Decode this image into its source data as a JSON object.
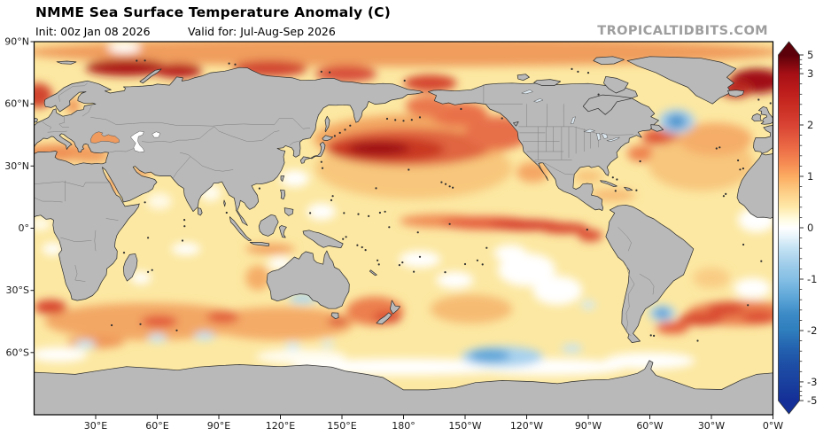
{
  "header": {
    "title": "NMME Sea Surface Temperature Anomaly (C)",
    "init": "Init: 00z Jan 08 2026",
    "valid": "Valid for: Jul-Aug-Sep 2026",
    "watermark": "TROPICALTIDBITS.COM"
  },
  "axes": {
    "lat_ticks": [
      {
        "label": "90°N",
        "lat": 90
      },
      {
        "label": "60°N",
        "lat": 60
      },
      {
        "label": "30°N",
        "lat": 30
      },
      {
        "label": "0°",
        "lat": 0
      },
      {
        "label": "30°S",
        "lat": -30
      },
      {
        "label": "60°S",
        "lat": -60
      }
    ],
    "lon_ticks": [
      {
        "label": "30°E",
        "lon": 30
      },
      {
        "label": "60°E",
        "lon": 60
      },
      {
        "label": "90°E",
        "lon": 90
      },
      {
        "label": "120°E",
        "lon": 120
      },
      {
        "label": "150°E",
        "lon": 150
      },
      {
        "label": "180°",
        "lon": 180
      },
      {
        "label": "150°W",
        "lon": 210
      },
      {
        "label": "120°W",
        "lon": 240
      },
      {
        "label": "90°W",
        "lon": 270
      },
      {
        "label": "60°W",
        "lon": 300
      },
      {
        "label": "30°W",
        "lon": 330
      },
      {
        "label": "0°W",
        "lon": 360
      }
    ]
  },
  "colorbar": {
    "unit": "C",
    "major_ticks": [
      {
        "label": "5",
        "value": 5
      },
      {
        "label": "3",
        "value": 3
      },
      {
        "label": "2",
        "value": 2
      },
      {
        "label": "1",
        "value": 1
      },
      {
        "label": "0",
        "value": 0
      },
      {
        "label": "-1",
        "value": -1
      },
      {
        "label": "-2",
        "value": -2
      },
      {
        "label": "-3",
        "value": -3
      },
      {
        "label": "-5",
        "value": -5
      }
    ],
    "gradient": [
      [
        0.0,
        "#5c0009"
      ],
      [
        0.054,
        "#a50f15"
      ],
      [
        0.1,
        "#bb1b1b"
      ],
      [
        0.145,
        "#c92c22"
      ],
      [
        0.205,
        "#d94434"
      ],
      [
        0.27,
        "#ec6c46"
      ],
      [
        0.32,
        "#f79055"
      ],
      [
        0.354,
        "#fcae63"
      ],
      [
        0.4,
        "#fdd089"
      ],
      [
        0.44,
        "#fee8a8"
      ],
      [
        0.475,
        "#fffbe0"
      ],
      [
        0.5,
        "#ffffff"
      ],
      [
        0.525,
        "#e8f4fb"
      ],
      [
        0.56,
        "#c3e2f4"
      ],
      [
        0.61,
        "#9ccbe9"
      ],
      [
        0.649,
        "#85bfe5"
      ],
      [
        0.7,
        "#5ea7d8"
      ],
      [
        0.75,
        "#3c8ac6"
      ],
      [
        0.797,
        "#2f7ebd"
      ],
      [
        0.85,
        "#2361af"
      ],
      [
        0.9,
        "#1d4da5"
      ],
      [
        0.944,
        "#1a419f"
      ],
      [
        1.0,
        "#142f97"
      ]
    ],
    "top_arrow_color": "#5c0009",
    "bottom_arrow_color": "#142f97"
  },
  "map_style": {
    "ocean": "#fce8a2",
    "land": "#b9b9b9",
    "coast": "#2b2b2b",
    "inner_border": "#787878",
    "frame": "#000000",
    "black_sea_fill": "#ef9a5e",
    "caspian_fill": "#ffffff",
    "lake_fill": "#dce8f0"
  },
  "anomaly_fields": [
    "name",
    "lon_east_deg",
    "lat_deg",
    "rx_deg",
    "ry_deg",
    "color"
  ],
  "anomalies": [
    [
      "np-broad",
      185,
      29,
      48,
      15,
      "#f8c77d"
    ],
    [
      "np-mid",
      186,
      43,
      50,
      12,
      "#f3a763"
    ],
    [
      "np-halo",
      182,
      39,
      40,
      9,
      "#e06541"
    ],
    [
      "kuroshio-halo",
      172,
      38,
      28,
      6,
      "#c93722"
    ],
    [
      "kuroshio-core",
      168,
      38.5,
      15,
      3.2,
      "#9d1013"
    ],
    [
      "npe-red",
      226,
      46,
      16,
      8,
      "#e77048"
    ],
    [
      "gulf-alaska",
      207,
      55,
      14,
      6,
      "#e9714a"
    ],
    [
      "bering",
      192,
      59,
      11,
      5,
      "#ea784e"
    ],
    [
      "chukchi",
      193,
      70,
      13,
      4,
      "#d5452f"
    ],
    [
      "arctic-band",
      180,
      85,
      185,
      7,
      "#f09d5d"
    ],
    [
      "barents-core",
      45,
      77.5,
      20,
      4,
      "#ac1517"
    ],
    [
      "kara-core",
      70,
      76,
      12,
      3.5,
      "#b81f1c"
    ],
    [
      "laptev",
      115,
      77,
      18,
      4,
      "#d24732"
    ],
    [
      "esiberian",
      152,
      74.5,
      15,
      4,
      "#d8503a"
    ],
    [
      "norwegian",
      2,
      64,
      7,
      6,
      "#d2452f"
    ],
    [
      "gin-dark",
      352,
      71,
      13,
      6,
      "#a01014"
    ],
    [
      "gin-dark2",
      342,
      67,
      8,
      4,
      "#bb2a20"
    ],
    [
      "natl-nfld",
      305,
      44,
      9,
      4,
      "#e05c3b"
    ],
    [
      "natl-coast",
      296,
      36,
      7,
      4,
      "#ee8350"
    ],
    [
      "natl-broad",
      325,
      31,
      26,
      13,
      "#f8c67d"
    ],
    [
      "natl-mid",
      332,
      43,
      18,
      8,
      "#f5ad69"
    ],
    [
      "med",
      14,
      36.5,
      21,
      4,
      "#ef9054"
    ],
    [
      "med-east",
      27,
      34.5,
      10,
      3,
      "#f2a061"
    ],
    [
      "red-sea",
      38,
      20,
      2.5,
      7,
      "#f2a061"
    ],
    [
      "persian-gulf",
      52,
      27,
      5,
      2.5,
      "#f2a061"
    ],
    [
      "caribbean",
      282,
      16,
      11,
      3,
      "#f7bb74"
    ],
    [
      "gulf-mexico",
      270,
      25,
      7,
      3,
      "#f8c37a"
    ],
    [
      "baja",
      243,
      27,
      8,
      5,
      "#f5a765"
    ],
    [
      "hudson",
      280,
      58,
      6,
      4,
      "#f4ab68"
    ],
    [
      "baltic",
      19,
      59,
      3,
      4,
      "#ef9356"
    ],
    [
      "eq-west",
      198,
      3.5,
      20,
      3.2,
      "#f08c54"
    ],
    [
      "eq-mid",
      220,
      2.5,
      22,
      3.2,
      "#e55f3e"
    ],
    [
      "eq-core",
      240,
      1.5,
      18,
      2.6,
      "#d63a2b"
    ],
    [
      "eq-east",
      258,
      0,
      12,
      2.6,
      "#d8422f"
    ],
    [
      "peru-tongue",
      271,
      -3.5,
      6,
      3,
      "#dd5138"
    ],
    [
      "satl-band",
      344,
      -41,
      26,
      6,
      "#ea7d4e"
    ],
    [
      "satl-core1",
      337,
      -39,
      9,
      2.8,
      "#d8452f"
    ],
    [
      "satl-core2",
      353,
      -43,
      8,
      2.8,
      "#dc4c33"
    ],
    [
      "arg-red",
      325,
      -44,
      11,
      3,
      "#d8472f"
    ],
    [
      "arg-red2",
      311,
      -48,
      8,
      3,
      "#e55f3e"
    ],
    [
      "sind-band",
      55,
      -45,
      50,
      9,
      "#f3a765"
    ],
    [
      "sind-band2",
      120,
      -46,
      36,
      8,
      "#f4ab67"
    ],
    [
      "sind-core1",
      8,
      -38,
      8,
      3.5,
      "#d8452f"
    ],
    [
      "sind-core2",
      61,
      -45,
      9,
      3,
      "#e2593a"
    ],
    [
      "sind-core3",
      92,
      -43,
      8,
      3,
      "#e25d3b"
    ],
    [
      "soc-orange",
      30,
      -55,
      14,
      3,
      "#ef9758"
    ],
    [
      "tasman",
      166,
      -40,
      14,
      7,
      "#ec7f4e"
    ],
    [
      "nz-core",
      172,
      -43,
      7,
      3,
      "#da4f34"
    ],
    [
      "tassie-core",
      148,
      -45,
      5,
      2.2,
      "#dc5438"
    ],
    [
      "indo-java",
      115,
      -10,
      12,
      2.5,
      "#f2a160"
    ],
    [
      "wa-coast",
      109,
      -24,
      6,
      6,
      "#f5ad68"
    ],
    [
      "spac-warm",
      213,
      -39,
      20,
      7,
      "#f6bb73"
    ],
    [
      "brazil-ne",
      330,
      -24,
      9,
      5,
      "#f9cc84"
    ],
    [
      "wpac-white1",
      127,
      24,
      7,
      4,
      "#ffffff"
    ],
    [
      "wpac-white2",
      140,
      8,
      7,
      4,
      "#ffffff"
    ],
    [
      "wpac-white3",
      120,
      -17,
      6,
      3,
      "#ffffff"
    ],
    [
      "ind-white1",
      74,
      -10,
      7,
      3,
      "#ffffff"
    ],
    [
      "ind-white2",
      52,
      -24,
      5,
      3,
      "#ffffff"
    ],
    [
      "bengal-white",
      86,
      17,
      5,
      4,
      "#fffdf2"
    ],
    [
      "arab-white",
      61,
      13,
      6,
      4,
      "#fffae8"
    ],
    [
      "seatl-white",
      9,
      -10,
      5,
      3,
      "#ffffff"
    ],
    [
      "guinea-white",
      3,
      2,
      5,
      3,
      "#fffdf0"
    ],
    [
      "sepac-white1",
      240,
      -20,
      14,
      8,
      "#ffffff"
    ],
    [
      "sepac-white2",
      255,
      -30,
      12,
      7,
      "#ffffff"
    ],
    [
      "sepac-white3",
      232,
      -12,
      8,
      4,
      "#ffffff"
    ],
    [
      "cspac-white1",
      188,
      -15,
      10,
      4,
      "#ffffff"
    ],
    [
      "cspac-white2",
      205,
      -25,
      9,
      4,
      "#ffffff"
    ],
    [
      "santl-white",
      350,
      -29,
      9,
      5,
      "#ffffff"
    ],
    [
      "eqatl-white",
      352,
      4,
      9,
      6,
      "#ffffff"
    ],
    [
      "soc-white1",
      180,
      -67,
      55,
      4,
      "#ffffff"
    ],
    [
      "soc-white2",
      250,
      -67,
      38,
      4,
      "#ffffff"
    ],
    [
      "soc-white3",
      300,
      -64,
      22,
      4,
      "#ffffff"
    ],
    [
      "soc-white4",
      130,
      -62,
      22,
      3.5,
      "#fffdf2"
    ],
    [
      "soc-white5",
      12,
      -61,
      14,
      3.5,
      "#ffffff"
    ],
    [
      "arctic-white",
      44,
      87,
      8,
      2.5,
      "#ffffff"
    ],
    [
      "natl-blue-halo",
      313,
      51.5,
      9,
      6,
      "#a9d0ec"
    ],
    [
      "natl-blue-core",
      313,
      51.5,
      5,
      3.5,
      "#4f97cf"
    ],
    [
      "neus-blue",
      285,
      42,
      2.5,
      1.5,
      "#7db8e2"
    ],
    [
      "arg-blue-halo",
      306,
      -41,
      6.5,
      4,
      "#abd3ee"
    ],
    [
      "arg-blue-core",
      306,
      -41,
      3.8,
      2.4,
      "#579dd4"
    ],
    [
      "soc-blue-halo",
      228,
      -62,
      20,
      5,
      "#a8d2ee"
    ],
    [
      "soc-blue-core",
      222,
      -61.5,
      10,
      3.2,
      "#61a6d9"
    ],
    [
      "gab-blue",
      131,
      -34,
      7,
      2.4,
      "#aed6f0"
    ],
    [
      "sind-blue1",
      25,
      -56,
      5,
      2,
      "#c8e6f6"
    ],
    [
      "sind-blue2",
      60,
      -53,
      4.5,
      2,
      "#c3e3f5"
    ],
    [
      "sind-blue3",
      83,
      -52,
      5,
      2,
      "#bfe1f4"
    ],
    [
      "sind-blue4",
      126,
      -57,
      3.5,
      1.8,
      "#cfe9f8"
    ],
    [
      "sind-blue5",
      143,
      -56,
      3,
      1.6,
      "#d4ebf8"
    ],
    [
      "spac-blue1",
      262,
      -58,
      5,
      2,
      "#c6e4f5"
    ],
    [
      "spac-blue2",
      270,
      -37,
      3.5,
      2,
      "#d2eaf8"
    ]
  ]
}
